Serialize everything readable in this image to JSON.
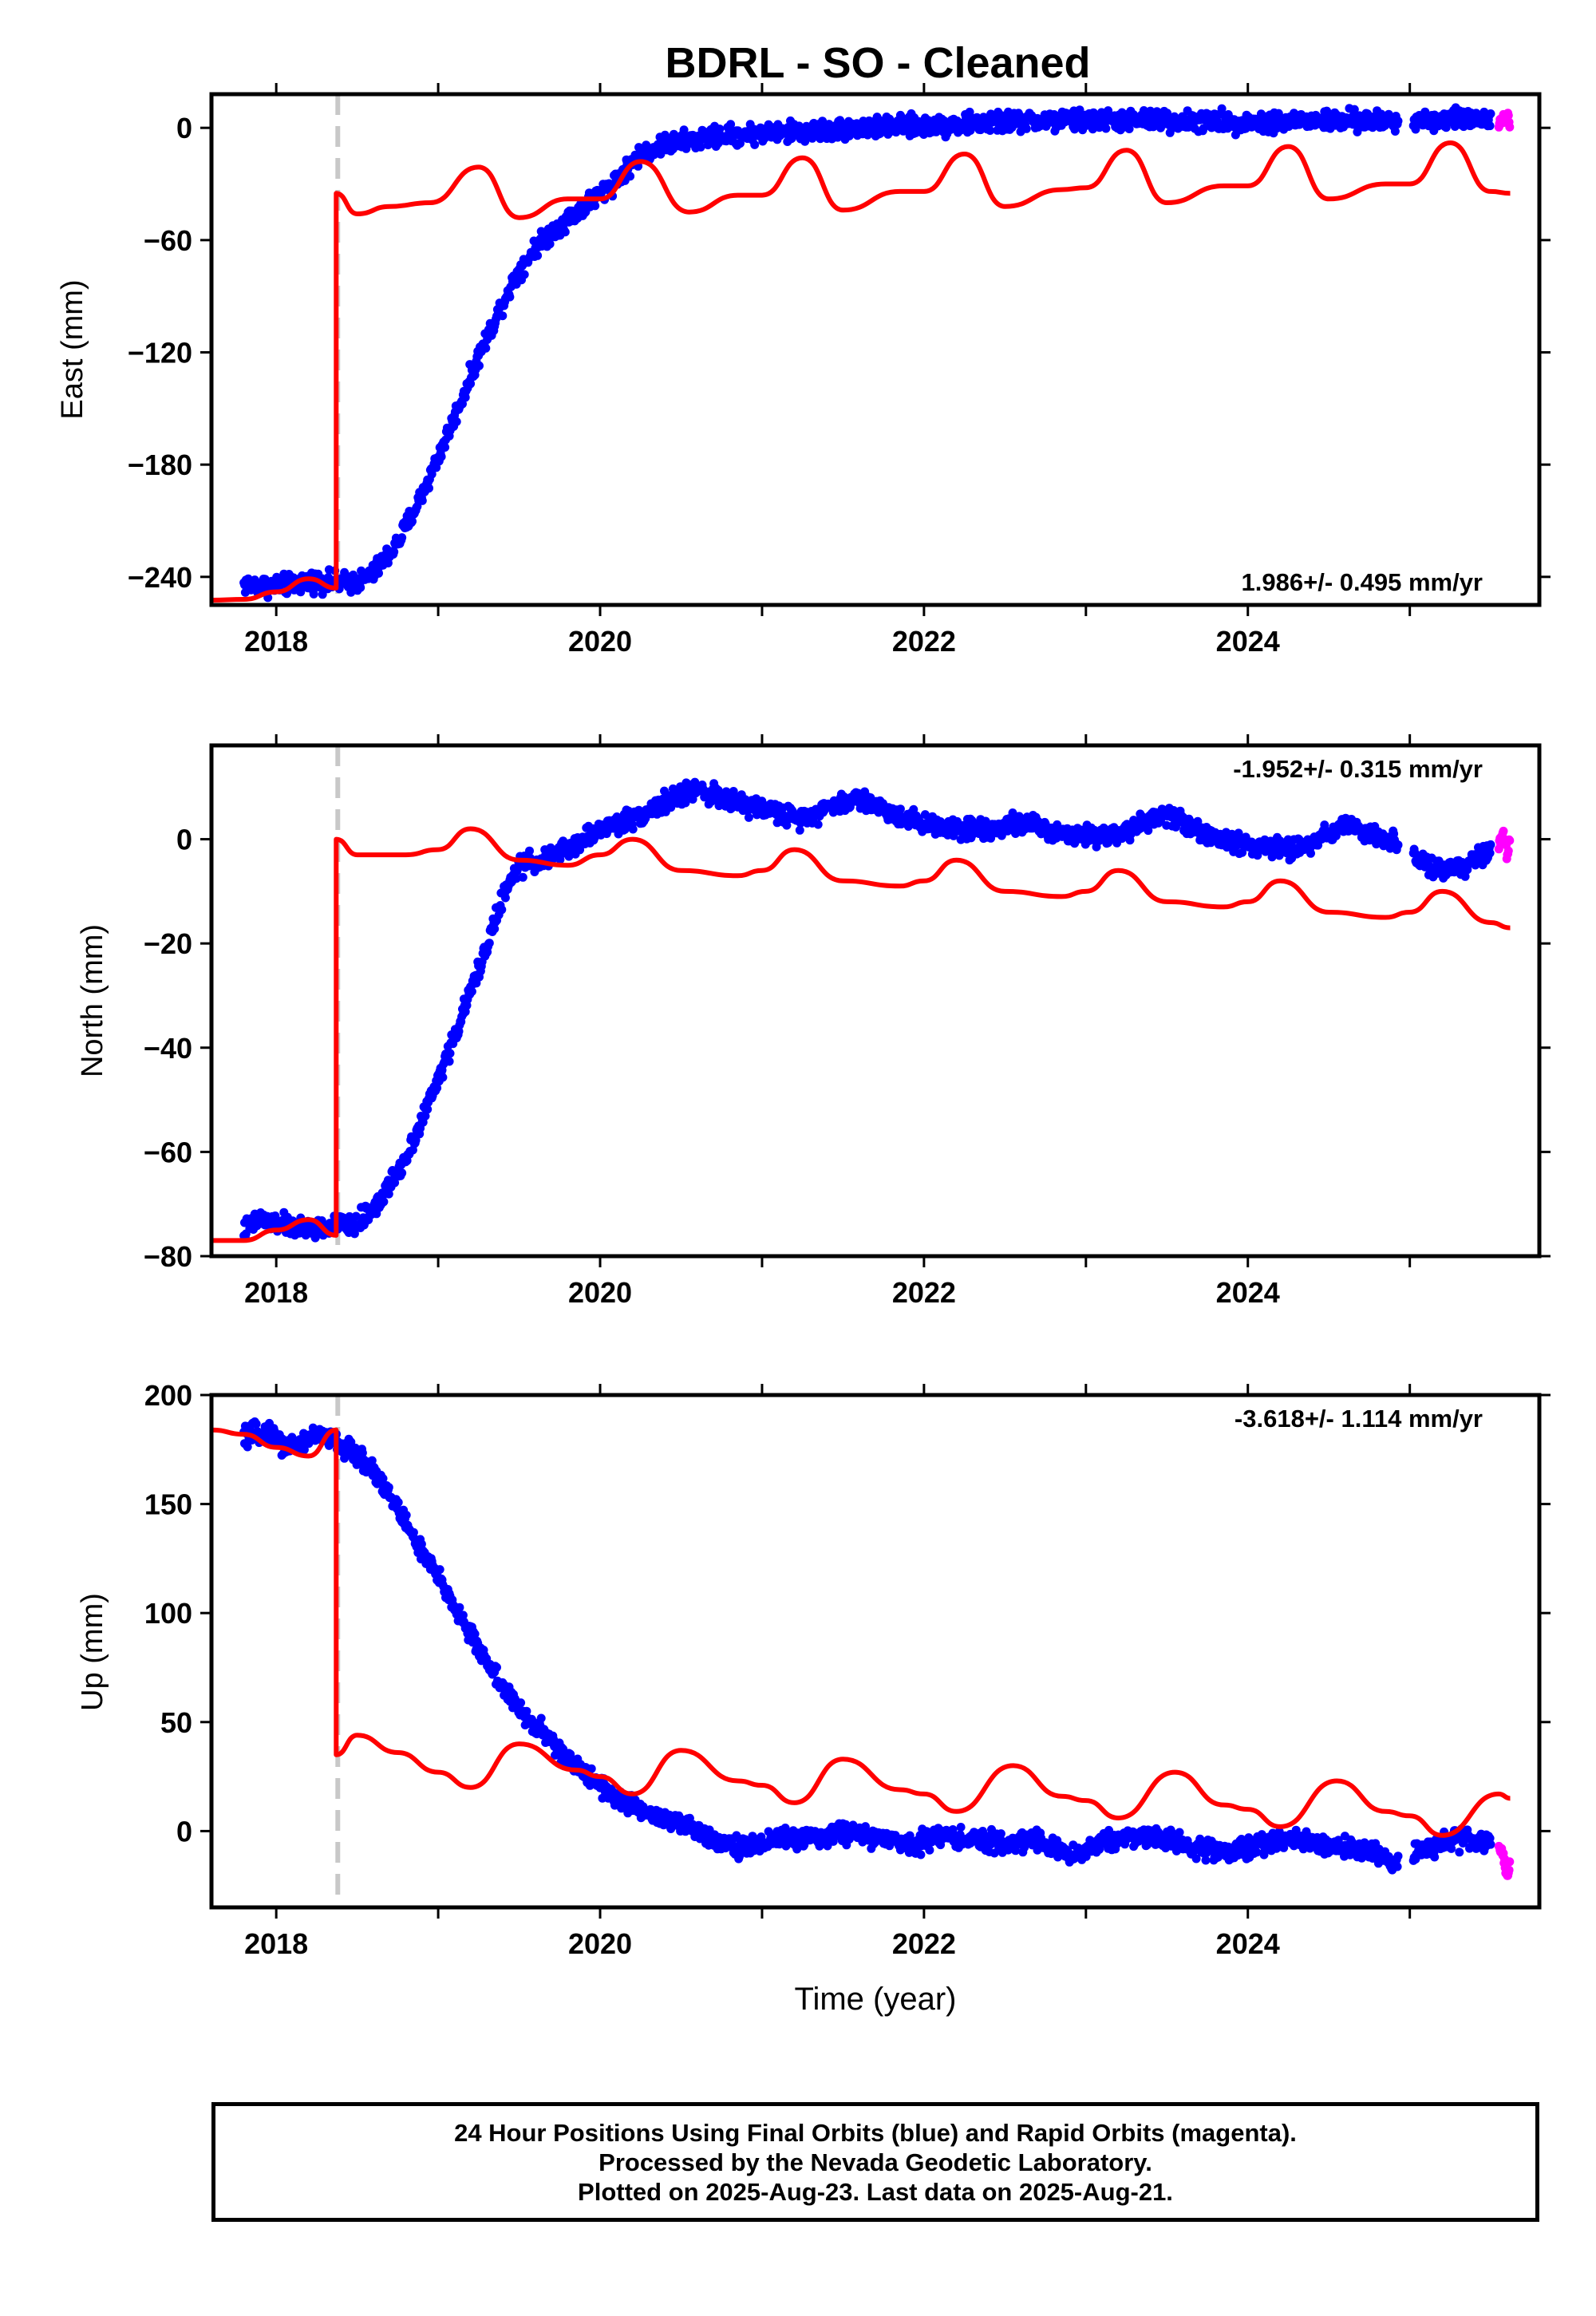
{
  "title": "BDRL  - SO - Cleaned",
  "colors": {
    "final_orbits": "#0000ff",
    "rapid_orbits": "#ff00ff",
    "model": "#ff0000",
    "event_line": "#c8c8c8",
    "axes": "#000000"
  },
  "chart_data": [
    {
      "type": "scatter",
      "ylabel": "East (mm)",
      "xlim": [
        2017.6,
        2025.8
      ],
      "ylim": [
        -255,
        18
      ],
      "xticks": [
        "2018",
        "2020",
        "2022",
        "2024"
      ],
      "yticks": [
        "0",
        "-60",
        "-120",
        "-180",
        "-240"
      ],
      "rate_label": "1.986+/- 0.495 mm/yr",
      "rate_position": "bottom-right",
      "event_time": 2018.38,
      "series": [
        {
          "role": "final_orbits",
          "color": "#0000ff",
          "points": [
            [
              2017.8,
              -244
            ],
            [
              2017.95,
              -245
            ],
            [
              2018.1,
              -244
            ],
            [
              2018.25,
              -242
            ],
            [
              2018.38,
              -243
            ],
            [
              2018.5,
              -243
            ],
            [
              2018.6,
              -238
            ],
            [
              2018.75,
              -222
            ],
            [
              2018.9,
              -196
            ],
            [
              2019.0,
              -176
            ],
            [
              2019.1,
              -155
            ],
            [
              2019.25,
              -122
            ],
            [
              2019.4,
              -93
            ],
            [
              2019.5,
              -76
            ],
            [
              2019.6,
              -64
            ],
            [
              2019.75,
              -52
            ],
            [
              2019.9,
              -42
            ],
            [
              2020.0,
              -35
            ],
            [
              2020.1,
              -28
            ],
            [
              2020.25,
              -14
            ],
            [
              2020.4,
              -9
            ],
            [
              2020.6,
              -6
            ],
            [
              2020.8,
              -4
            ],
            [
              2021.0,
              -3
            ],
            [
              2021.3,
              -2
            ],
            [
              2021.6,
              0
            ],
            [
              2022.0,
              1
            ],
            [
              2022.5,
              3
            ],
            [
              2023.0,
              4
            ],
            [
              2023.5,
              4
            ],
            [
              2024.0,
              3
            ],
            [
              2024.5,
              4
            ],
            [
              2024.95,
              3
            ],
            [
              2025.2,
              5
            ],
            [
              2025.5,
              5
            ]
          ]
        },
        {
          "role": "rapid_orbits",
          "color": "#ff00ff",
          "points": [
            [
              2025.55,
              3
            ],
            [
              2025.58,
              5
            ],
            [
              2025.6,
              8
            ],
            [
              2025.62,
              0
            ]
          ]
        },
        {
          "role": "model",
          "color": "#ff0000",
          "points": [
            [
              2017.6,
              -256
            ],
            [
              2017.8,
              -252
            ],
            [
              2018.0,
              -248
            ],
            [
              2018.2,
              -241
            ],
            [
              2018.37,
              -246
            ],
            [
              2018.37,
              -35
            ],
            [
              2018.5,
              -46
            ],
            [
              2018.7,
              -42
            ],
            [
              2018.95,
              -40
            ],
            [
              2019.25,
              -21
            ],
            [
              2019.5,
              -48
            ],
            [
              2019.8,
              -38
            ],
            [
              2020.0,
              -38
            ],
            [
              2020.25,
              -18
            ],
            [
              2020.55,
              -45
            ],
            [
              2020.85,
              -36
            ],
            [
              2021.0,
              -36
            ],
            [
              2021.25,
              -16
            ],
            [
              2021.5,
              -44
            ],
            [
              2021.85,
              -34
            ],
            [
              2022.0,
              -34
            ],
            [
              2022.25,
              -14
            ],
            [
              2022.5,
              -42
            ],
            [
              2022.85,
              -33
            ],
            [
              2023.0,
              -32
            ],
            [
              2023.25,
              -12
            ],
            [
              2023.5,
              -40
            ],
            [
              2023.85,
              -31
            ],
            [
              2024.0,
              -31
            ],
            [
              2024.25,
              -10
            ],
            [
              2024.5,
              -38
            ],
            [
              2024.85,
              -30
            ],
            [
              2025.0,
              -30
            ],
            [
              2025.25,
              -8
            ],
            [
              2025.5,
              -34
            ],
            [
              2025.62,
              -35
            ]
          ]
        }
      ]
    },
    {
      "type": "scatter",
      "ylabel": "North (mm)",
      "xlim": [
        2017.6,
        2025.8
      ],
      "ylim": [
        -80,
        18
      ],
      "xticks": [
        "2018",
        "2020",
        "2022",
        "2024"
      ],
      "yticks": [
        "0",
        "-20",
        "-40",
        "-60",
        "-80"
      ],
      "rate_label": "-1.952+/- 0.315 mm/yr",
      "rate_position": "top-right",
      "event_time": 2018.38,
      "series": [
        {
          "role": "final_orbits",
          "color": "#0000ff",
          "points": [
            [
              2017.8,
              -75
            ],
            [
              2017.9,
              -73
            ],
            [
              2018.05,
              -74
            ],
            [
              2018.2,
              -75
            ],
            [
              2018.38,
              -74
            ],
            [
              2018.5,
              -74
            ],
            [
              2018.65,
              -69
            ],
            [
              2018.8,
              -61
            ],
            [
              2018.95,
              -50
            ],
            [
              2019.1,
              -38
            ],
            [
              2019.25,
              -25
            ],
            [
              2019.4,
              -11
            ],
            [
              2019.5,
              -5
            ],
            [
              2019.65,
              -4
            ],
            [
              2019.8,
              -2
            ],
            [
              2020.0,
              2
            ],
            [
              2020.2,
              4
            ],
            [
              2020.4,
              7
            ],
            [
              2020.6,
              10
            ],
            [
              2020.8,
              7
            ],
            [
              2021.0,
              6
            ],
            [
              2021.2,
              4
            ],
            [
              2021.4,
              6
            ],
            [
              2021.6,
              8
            ],
            [
              2021.8,
              5
            ],
            [
              2022.0,
              3
            ],
            [
              2022.3,
              2
            ],
            [
              2022.6,
              3
            ],
            [
              2022.9,
              1
            ],
            [
              2023.2,
              1
            ],
            [
              2023.5,
              5
            ],
            [
              2023.8,
              0
            ],
            [
              2024.0,
              -1
            ],
            [
              2024.3,
              -2
            ],
            [
              2024.6,
              3
            ],
            [
              2024.9,
              -1
            ],
            [
              2025.1,
              -5
            ],
            [
              2025.3,
              -6
            ],
            [
              2025.5,
              -2
            ]
          ]
        },
        {
          "role": "rapid_orbits",
          "color": "#ff00ff",
          "points": [
            [
              2025.55,
              -1
            ],
            [
              2025.58,
              1
            ],
            [
              2025.6,
              -3
            ],
            [
              2025.62,
              0
            ]
          ]
        },
        {
          "role": "model",
          "color": "#ff0000",
          "points": [
            [
              2017.6,
              -77
            ],
            [
              2017.8,
              -77
            ],
            [
              2018.0,
              -75
            ],
            [
              2018.2,
              -73
            ],
            [
              2018.37,
              -76
            ],
            [
              2018.37,
              0
            ],
            [
              2018.5,
              -3
            ],
            [
              2018.8,
              -3
            ],
            [
              2019.0,
              -2
            ],
            [
              2019.2,
              2
            ],
            [
              2019.5,
              -4
            ],
            [
              2019.8,
              -5
            ],
            [
              2020.0,
              -3
            ],
            [
              2020.2,
              0
            ],
            [
              2020.5,
              -6
            ],
            [
              2020.85,
              -7
            ],
            [
              2021.0,
              -6
            ],
            [
              2021.2,
              -2
            ],
            [
              2021.5,
              -8
            ],
            [
              2021.85,
              -9
            ],
            [
              2022.0,
              -8
            ],
            [
              2022.2,
              -4
            ],
            [
              2022.5,
              -10
            ],
            [
              2022.85,
              -11
            ],
            [
              2023.0,
              -10
            ],
            [
              2023.2,
              -6
            ],
            [
              2023.5,
              -12
            ],
            [
              2023.85,
              -13
            ],
            [
              2024.0,
              -12
            ],
            [
              2024.2,
              -8
            ],
            [
              2024.5,
              -14
            ],
            [
              2024.85,
              -15
            ],
            [
              2025.0,
              -14
            ],
            [
              2025.2,
              -10
            ],
            [
              2025.5,
              -16
            ],
            [
              2025.62,
              -17
            ]
          ]
        }
      ]
    },
    {
      "type": "scatter",
      "ylabel": "Up (mm)",
      "xlabel": "Time (year)",
      "xlim": [
        2017.6,
        2025.8
      ],
      "ylim": [
        -35,
        200
      ],
      "xticks": [
        "2018",
        "2020",
        "2022",
        "2024"
      ],
      "yticks": [
        "200",
        "150",
        "100",
        "50",
        "0"
      ],
      "rate_label": "-3.618+/- 1.114 mm/yr",
      "rate_position": "top-right",
      "event_time": 2018.38,
      "series": [
        {
          "role": "final_orbits",
          "color": "#0000ff",
          "points": [
            [
              2017.8,
              180
            ],
            [
              2017.95,
              184
            ],
            [
              2018.05,
              176
            ],
            [
              2018.15,
              178
            ],
            [
              2018.25,
              182
            ],
            [
              2018.38,
              178
            ],
            [
              2018.5,
              172
            ],
            [
              2018.6,
              166
            ],
            [
              2018.75,
              148
            ],
            [
              2018.9,
              128
            ],
            [
              2019.05,
              110
            ],
            [
              2019.2,
              90
            ],
            [
              2019.35,
              72
            ],
            [
              2019.5,
              55
            ],
            [
              2019.65,
              45
            ],
            [
              2019.8,
              32
            ],
            [
              2019.95,
              25
            ],
            [
              2020.1,
              15
            ],
            [
              2020.3,
              8
            ],
            [
              2020.5,
              3
            ],
            [
              2020.7,
              -3
            ],
            [
              2020.9,
              -8
            ],
            [
              2021.1,
              -3
            ],
            [
              2021.3,
              -4
            ],
            [
              2021.5,
              0
            ],
            [
              2021.7,
              -3
            ],
            [
              2021.9,
              -6
            ],
            [
              2022.1,
              -2
            ],
            [
              2022.3,
              -4
            ],
            [
              2022.5,
              -6
            ],
            [
              2022.7,
              -3
            ],
            [
              2022.9,
              -12
            ],
            [
              2023.1,
              -5
            ],
            [
              2023.3,
              -2
            ],
            [
              2023.5,
              -4
            ],
            [
              2023.7,
              -8
            ],
            [
              2023.9,
              -10
            ],
            [
              2024.1,
              -5
            ],
            [
              2024.3,
              -3
            ],
            [
              2024.5,
              -7
            ],
            [
              2024.7,
              -8
            ],
            [
              2024.9,
              -14
            ],
            [
              2025.1,
              -8
            ],
            [
              2025.3,
              -4
            ],
            [
              2025.5,
              -4
            ]
          ]
        },
        {
          "role": "rapid_orbits",
          "color": "#ff00ff",
          "points": [
            [
              2025.55,
              -5
            ],
            [
              2025.58,
              -12
            ],
            [
              2025.6,
              -22
            ],
            [
              2025.62,
              -15
            ]
          ]
        },
        {
          "role": "model",
          "color": "#ff0000",
          "points": [
            [
              2017.6,
              184
            ],
            [
              2017.8,
              182
            ],
            [
              2018.0,
              176
            ],
            [
              2018.2,
              172
            ],
            [
              2018.37,
              184
            ],
            [
              2018.37,
              35
            ],
            [
              2018.5,
              44
            ],
            [
              2018.75,
              36
            ],
            [
              2019.0,
              27
            ],
            [
              2019.2,
              20
            ],
            [
              2019.5,
              40
            ],
            [
              2019.85,
              28
            ],
            [
              2020.0,
              25
            ],
            [
              2020.2,
              17
            ],
            [
              2020.5,
              37
            ],
            [
              2020.85,
              23
            ],
            [
              2021.0,
              21
            ],
            [
              2021.2,
              13
            ],
            [
              2021.5,
              33
            ],
            [
              2021.85,
              19
            ],
            [
              2022.0,
              17
            ],
            [
              2022.2,
              9
            ],
            [
              2022.55,
              30
            ],
            [
              2022.85,
              16
            ],
            [
              2023.0,
              14
            ],
            [
              2023.2,
              6
            ],
            [
              2023.55,
              27
            ],
            [
              2023.85,
              12
            ],
            [
              2024.0,
              10
            ],
            [
              2024.2,
              2
            ],
            [
              2024.55,
              23
            ],
            [
              2024.85,
              9
            ],
            [
              2025.0,
              7
            ],
            [
              2025.2,
              -2
            ],
            [
              2025.55,
              17
            ],
            [
              2025.62,
              15
            ]
          ]
        }
      ]
    }
  ],
  "footer": {
    "line1": "24 Hour Positions Using Final Orbits (blue) and Rapid Orbits (magenta).",
    "line2": "Processed by the Nevada Geodetic Laboratory.",
    "line3": "Plotted on 2025-Aug-23. Last data on 2025-Aug-21."
  }
}
